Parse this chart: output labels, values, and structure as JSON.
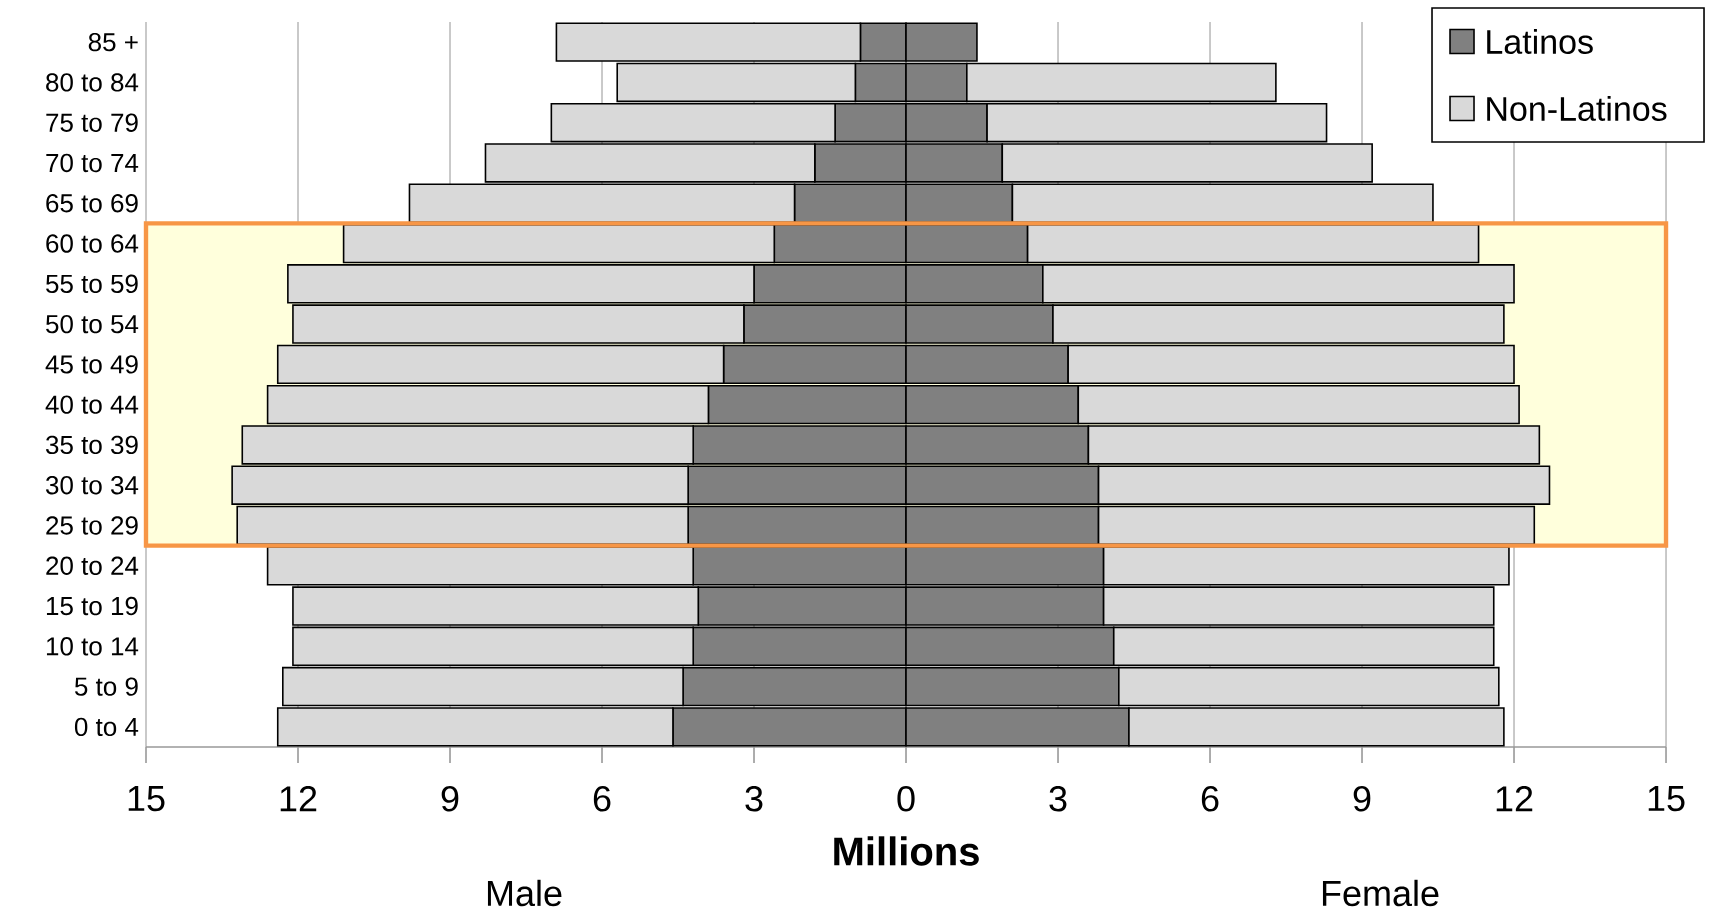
{
  "chart_data": {
    "type": "bar",
    "orientation": "horizontal",
    "stacked": true,
    "xlabel": "Millions",
    "categories": [
      "85 +",
      "80 to 84",
      "75 to 79",
      "70 to 74",
      "65 to 69",
      "60 to 64",
      "55 to 59",
      "50 to 54",
      "45 to 49",
      "40 to 44",
      "35 to 39",
      "30 to 34",
      "25 to 29",
      "20 to 24",
      "15 to 19",
      "10 to 14",
      "5 to 9",
      "0 to 4"
    ],
    "series": [
      {
        "name": "Latinos",
        "color": "#808080",
        "values": [
          -0.9,
          -1.0,
          -1.4,
          -1.8,
          -2.2,
          -2.6,
          -3.0,
          -3.2,
          -3.6,
          -3.9,
          -4.2,
          -4.3,
          -4.3,
          -4.2,
          -4.1,
          -4.2,
          -4.4,
          -4.6
        ]
      },
      {
        "name": "Non-Latinos",
        "color": "#d9d9d9",
        "values": [
          -6.0,
          -4.7,
          -5.6,
          -6.5,
          -7.6,
          -8.5,
          -9.2,
          -8.9,
          -8.8,
          -8.7,
          -8.9,
          -9.0,
          -8.9,
          -8.4,
          -8.0,
          -7.9,
          -7.9,
          -7.8
        ]
      },
      {
        "color": "#808080",
        "values": [
          1.4,
          1.2,
          1.6,
          1.9,
          2.1,
          2.4,
          2.7,
          2.9,
          3.2,
          3.4,
          3.6,
          3.8,
          3.8,
          3.9,
          3.9,
          4.1,
          4.2,
          4.4
        ]
      },
      {
        "color": "#d9d9d9",
        "values": [
          null,
          6.1,
          6.7,
          7.3,
          8.3,
          8.9,
          9.3,
          8.9,
          8.8,
          8.7,
          8.9,
          8.9,
          8.6,
          8.0,
          7.7,
          7.5,
          7.5,
          7.4
        ]
      }
    ],
    "xlim": [
      -15,
      15
    ],
    "xticks": [
      {
        "value": -15,
        "label": "15"
      },
      {
        "value": -12,
        "label": "12"
      },
      {
        "value": -9,
        "label": "9"
      },
      {
        "value": -6,
        "label": "6"
      },
      {
        "value": -3,
        "label": "3"
      },
      0,
      3,
      6,
      9,
      12,
      15
    ],
    "bands": [
      {
        "axis": "y",
        "from": "25 to 29",
        "to": "60 to 64",
        "color": "#ffffdc"
      }
    ],
    "annotations": [
      "Male",
      "Female"
    ],
    "grid": "x",
    "legend": "top right"
  }
}
